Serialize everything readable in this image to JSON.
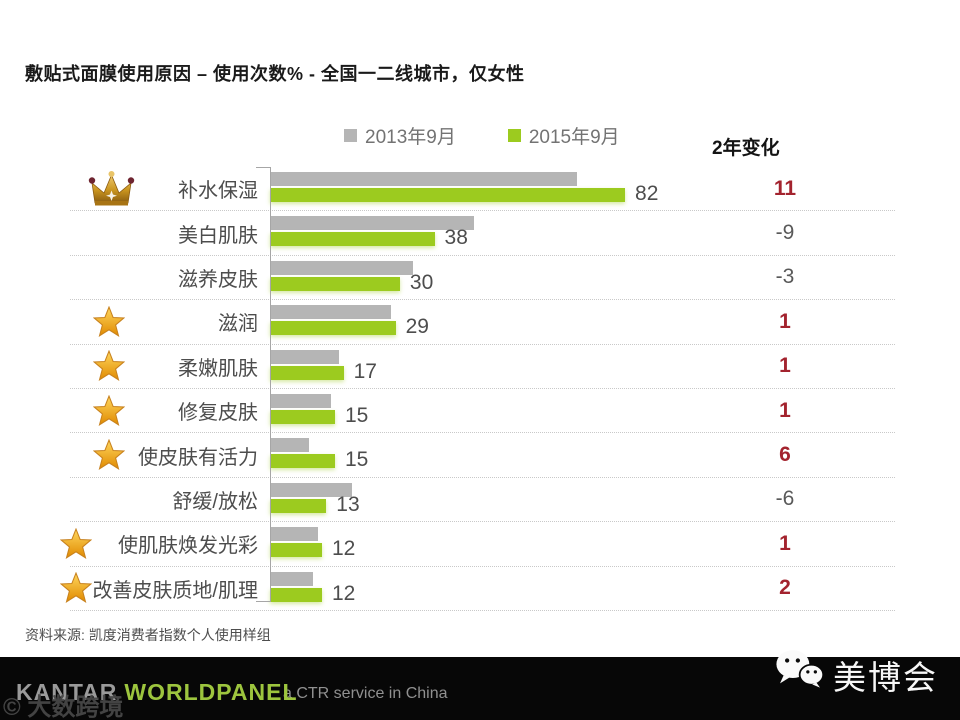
{
  "title": "敷贴式面膜使用原因 – 使用次数% - 全国一二线城市，仅女性",
  "legend": {
    "items": [
      {
        "label": "2013年9月",
        "color": "#B5B5B5"
      },
      {
        "label": "2015年9月",
        "color": "#9CCB1F"
      }
    ]
  },
  "change_column": {
    "header": "2年变化"
  },
  "source": "资料来源: 凯度消费者指数个人使用样组",
  "footer": {
    "brand": {
      "kantar": "KANTAR",
      "worldpanel": "WORLDPANEL"
    },
    "tagline": "a CTR service in China",
    "watermark": "© 大数跨境",
    "wechat_account": "美博会"
  },
  "colors": {
    "bar_2013": "#B5B5B5",
    "bar_2015": "#9CCB1F",
    "change_positive": "#A3232E",
    "change_negative": "#595959",
    "worldpanel_green": "#9DC53E",
    "footer_bg": "#070707"
  },
  "chart_data": {
    "type": "bar",
    "orientation": "horizontal",
    "title": "敷贴式面膜使用原因 – 使用次数% - 全国一二线城市，仅女性",
    "categories": [
      "补水保湿",
      "美白肌肤",
      "滋养皮肤",
      "滋润",
      "柔嫩肌肤",
      "修复皮肤",
      "使皮肤有活力",
      "舒缓/放松",
      "使肌肤焕发光彩",
      "改善皮肤质地/肌理"
    ],
    "series": [
      {
        "name": "2013年9月",
        "color": "#B5B5B5",
        "values": [
          71,
          47,
          33,
          28,
          16,
          14,
          9,
          19,
          11,
          10
        ]
      },
      {
        "name": "2015年9月",
        "color": "#9CCB1F",
        "values": [
          82,
          38,
          30,
          29,
          17,
          15,
          15,
          13,
          12,
          12
        ]
      }
    ],
    "value_labels": {
      "series": "2015年9月",
      "values": [
        82,
        38,
        30,
        29,
        17,
        15,
        15,
        13,
        12,
        12
      ]
    },
    "changes": {
      "header": "2年变化",
      "values": [
        11,
        -9,
        -3,
        1,
        1,
        1,
        6,
        -6,
        1,
        2
      ]
    },
    "icons": [
      "crown",
      "",
      "",
      "star",
      "star",
      "star",
      "star",
      "",
      "star",
      "star"
    ],
    "xlim": [
      0,
      100
    ],
    "grid": false,
    "legend_position": "top"
  }
}
